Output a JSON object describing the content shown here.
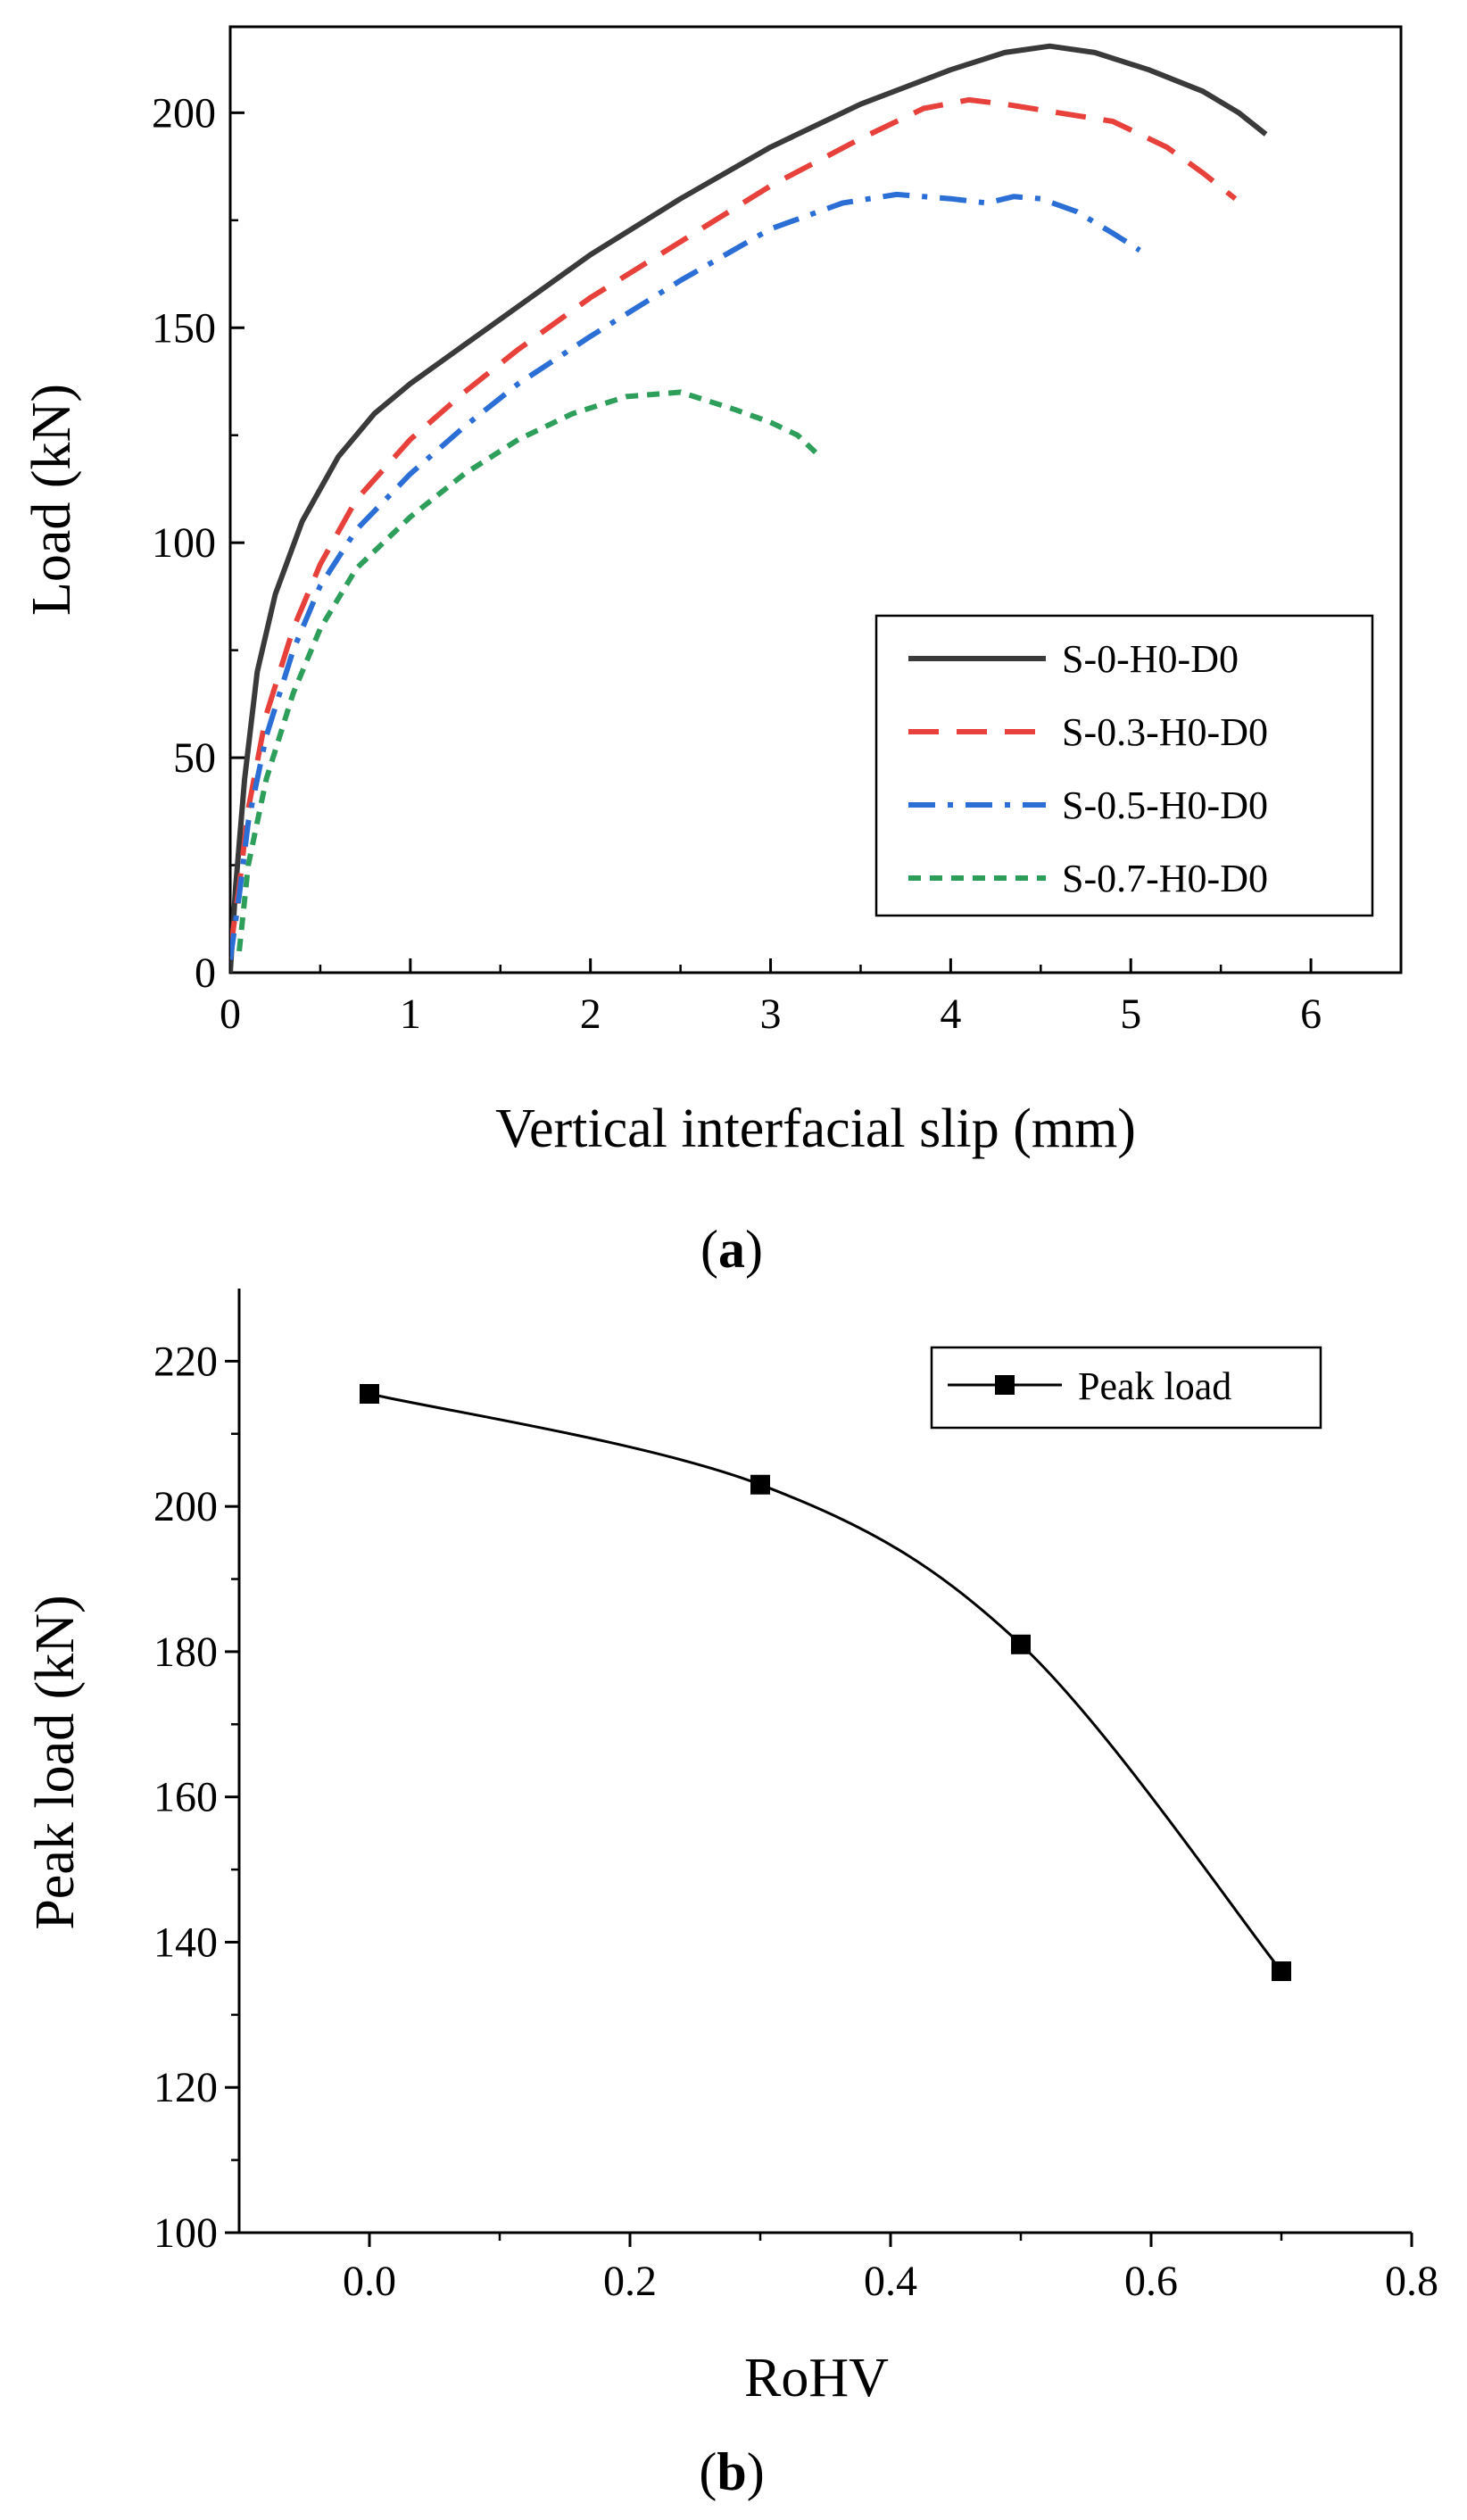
{
  "figure": {
    "caption_a": "a",
    "caption_b": "b"
  },
  "chart_data": [
    {
      "id": "a",
      "type": "line",
      "title": "",
      "xlabel": "Vertical interfacial slip (mm)",
      "ylabel": "Load (kN)",
      "xlim": [
        0,
        6.5
      ],
      "ylim": [
        0,
        220
      ],
      "xticks": [
        "0",
        "1",
        "2",
        "3",
        "4",
        "5",
        "6"
      ],
      "yticks": [
        "0",
        "50",
        "100",
        "150",
        "200"
      ],
      "legend_position": "bottom-right",
      "series": [
        {
          "name": "S-0-H0-D0",
          "color": "#3a3a3a",
          "dash": "solid",
          "points": [
            [
              0,
              0
            ],
            [
              0.03,
              20
            ],
            [
              0.08,
              45
            ],
            [
              0.15,
              70
            ],
            [
              0.25,
              88
            ],
            [
              0.4,
              105
            ],
            [
              0.6,
              120
            ],
            [
              0.8,
              130
            ],
            [
              1.0,
              137
            ],
            [
              1.3,
              146
            ],
            [
              1.6,
              155
            ],
            [
              2.0,
              167
            ],
            [
              2.5,
              180
            ],
            [
              3.0,
              192
            ],
            [
              3.5,
              202
            ],
            [
              4.0,
              210
            ],
            [
              4.3,
              214
            ],
            [
              4.55,
              215.5
            ],
            [
              4.8,
              214
            ],
            [
              5.1,
              210
            ],
            [
              5.4,
              205
            ],
            [
              5.6,
              200
            ],
            [
              5.75,
              195
            ]
          ]
        },
        {
          "name": "S-0.3-H0-D0",
          "color": "#e8413c",
          "dash": "long-dash",
          "points": [
            [
              0,
              5
            ],
            [
              0.05,
              20
            ],
            [
              0.1,
              38
            ],
            [
              0.2,
              60
            ],
            [
              0.35,
              80
            ],
            [
              0.5,
              95
            ],
            [
              0.7,
              110
            ],
            [
              1.0,
              124
            ],
            [
              1.3,
              135
            ],
            [
              1.6,
              145
            ],
            [
              2.0,
              157
            ],
            [
              2.5,
              170
            ],
            [
              3.0,
              183
            ],
            [
              3.5,
              194
            ],
            [
              3.85,
              201
            ],
            [
              4.1,
              203
            ],
            [
              4.3,
              202
            ],
            [
              4.6,
              200
            ],
            [
              4.9,
              198
            ],
            [
              5.2,
              192
            ],
            [
              5.4,
              186
            ],
            [
              5.58,
              180
            ]
          ]
        },
        {
          "name": "S-0.5-H0-D0",
          "color": "#2b6fd6",
          "dash": "dash-dot",
          "points": [
            [
              0,
              3
            ],
            [
              0.05,
              18
            ],
            [
              0.1,
              35
            ],
            [
              0.2,
              55
            ],
            [
              0.35,
              75
            ],
            [
              0.5,
              90
            ],
            [
              0.7,
              103
            ],
            [
              1.0,
              116
            ],
            [
              1.3,
              127
            ],
            [
              1.6,
              137
            ],
            [
              2.0,
              148
            ],
            [
              2.5,
              161
            ],
            [
              3.0,
              173
            ],
            [
              3.4,
              179
            ],
            [
              3.7,
              181
            ],
            [
              4.0,
              180
            ],
            [
              4.2,
              179
            ],
            [
              4.35,
              180.5
            ],
            [
              4.5,
              180
            ],
            [
              4.7,
              177
            ],
            [
              4.9,
              172
            ],
            [
              5.05,
              168
            ]
          ]
        },
        {
          "name": "S-0.7-H0-D0",
          "color": "#2e9e5b",
          "dash": "short-dash",
          "points": [
            [
              0.05,
              5
            ],
            [
              0.1,
              25
            ],
            [
              0.2,
              45
            ],
            [
              0.35,
              65
            ],
            [
              0.5,
              80
            ],
            [
              0.7,
              94
            ],
            [
              1.0,
              106
            ],
            [
              1.3,
              116
            ],
            [
              1.6,
              124
            ],
            [
              1.9,
              130
            ],
            [
              2.2,
              134
            ],
            [
              2.5,
              135
            ],
            [
              2.8,
              131
            ],
            [
              3.0,
              128
            ],
            [
              3.15,
              125
            ],
            [
              3.25,
              121
            ]
          ]
        }
      ]
    },
    {
      "id": "b",
      "type": "line",
      "title": "",
      "xlabel": "RoHV",
      "ylabel": "Peak load (kN)",
      "xlim": [
        -0.1,
        0.8
      ],
      "ylim": [
        100,
        230
      ],
      "xticks": [
        "0.0",
        "0.2",
        "0.4",
        "0.6",
        "0.8"
      ],
      "yticks": [
        "100",
        "120",
        "140",
        "160",
        "180",
        "200",
        "220"
      ],
      "legend_position": "top-right",
      "series": [
        {
          "name": "Peak load",
          "color": "#000000",
          "marker": "square",
          "x": [
            0.0,
            0.3,
            0.5,
            0.7
          ],
          "y": [
            215.5,
            203,
            181,
            136
          ]
        }
      ]
    }
  ]
}
